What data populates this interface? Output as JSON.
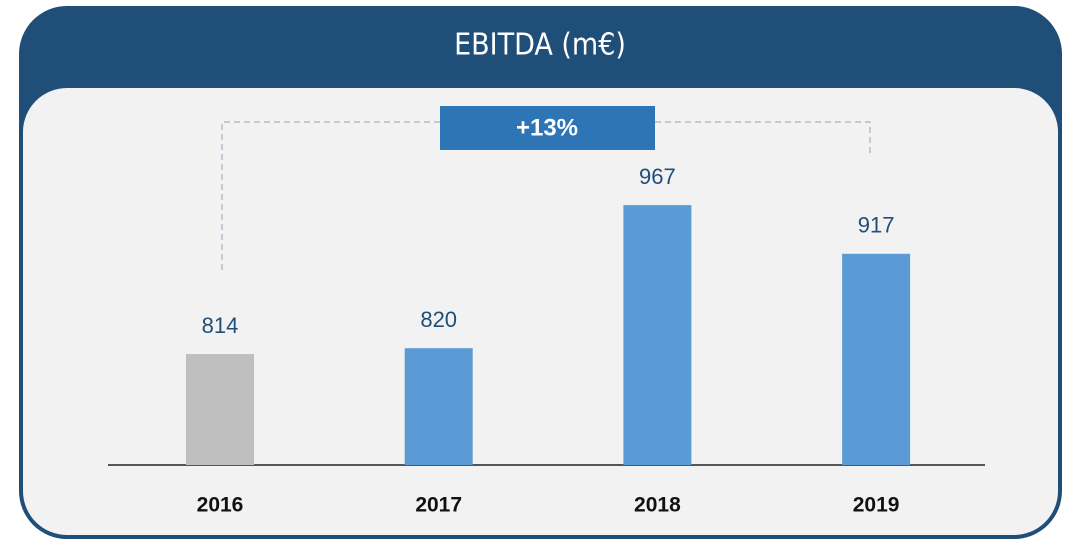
{
  "chart_data": {
    "type": "bar",
    "title": "EBITDA (m€)",
    "categories": [
      "2016",
      "2017",
      "2018",
      "2019"
    ],
    "values": [
      814,
      820,
      967,
      917
    ],
    "colors": [
      "#bfbfbf",
      "#5b9bd5",
      "#5b9bd5",
      "#5b9bd5"
    ],
    "ylim": [
      700,
      1000
    ],
    "annotation": "+13%"
  }
}
